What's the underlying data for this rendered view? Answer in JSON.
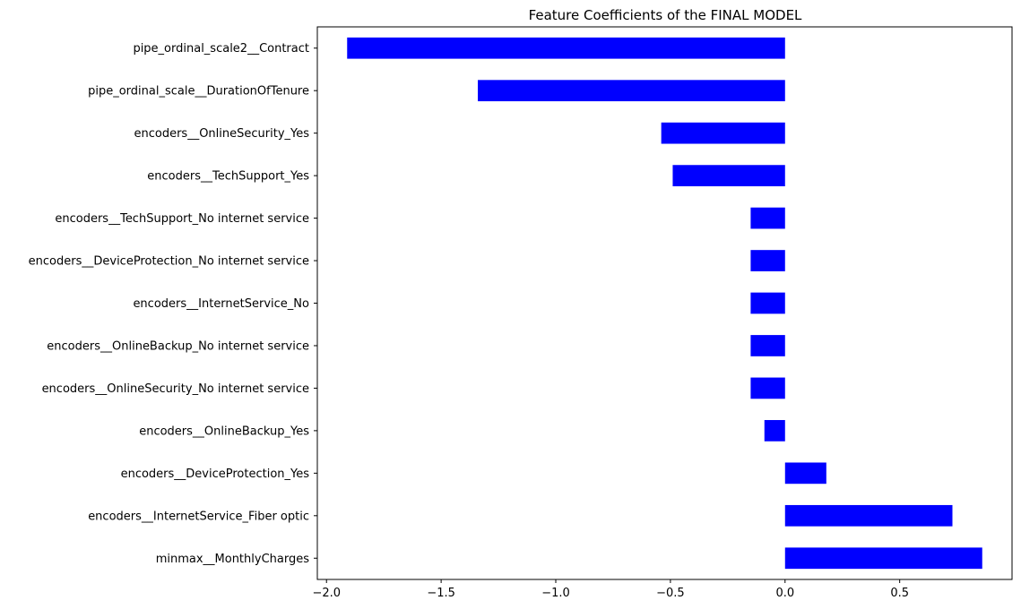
{
  "chart_data": {
    "type": "bar",
    "orientation": "horizontal",
    "title": "Feature Coefficients of the FINAL MODEL",
    "xlabel": "",
    "ylabel": "",
    "xlim": [
      -2.04,
      0.99
    ],
    "x_ticks": [
      -2.0,
      -1.5,
      -1.0,
      -0.5,
      0.0,
      0.5
    ],
    "x_tick_labels": [
      "−2.0",
      "−1.5",
      "−1.0",
      "−0.5",
      "0.0",
      "0.5"
    ],
    "grid": false,
    "legend": "none",
    "bar_color": "#0000ff",
    "categories": [
      "pipe_ordinal_scale2__Contract",
      "pipe_ordinal_scale__DurationOfTenure",
      "encoders__OnlineSecurity_Yes",
      "encoders__TechSupport_Yes",
      "encoders__TechSupport_No internet service",
      "encoders__DeviceProtection_No internet service",
      "encoders__InternetService_No",
      "encoders__OnlineBackup_No internet service",
      "encoders__OnlineSecurity_No internet service",
      "encoders__OnlineBackup_Yes",
      "encoders__DeviceProtection_Yes",
      "encoders__InternetService_Fiber optic",
      "minmax__MonthlyCharges"
    ],
    "values": [
      -1.91,
      -1.34,
      -0.54,
      -0.49,
      -0.15,
      -0.15,
      -0.15,
      -0.15,
      -0.15,
      -0.09,
      0.18,
      0.73,
      0.86
    ]
  }
}
